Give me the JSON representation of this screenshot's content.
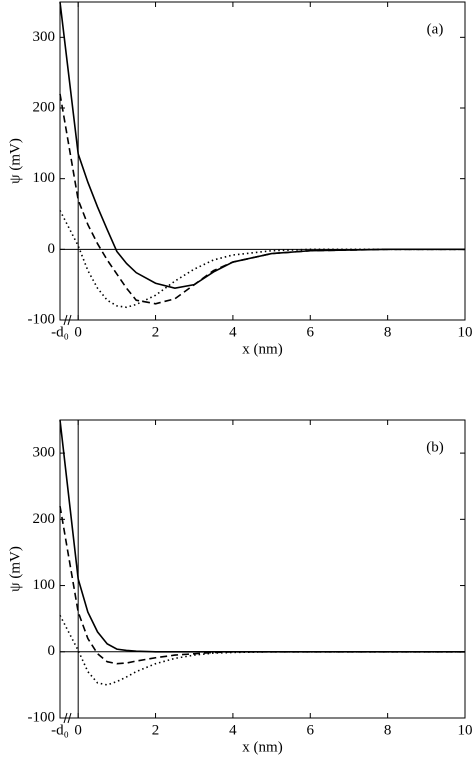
{
  "chart_data": [
    {
      "type": "line",
      "panel_label": "(a)",
      "xlabel": "x (nm)",
      "ylabel": "ψ (mV)",
      "x": [
        -0.47,
        0,
        0.25,
        0.5,
        0.75,
        1,
        1.25,
        1.5,
        2,
        2.5,
        3,
        3.5,
        4,
        5,
        6,
        8,
        10
      ],
      "series": [
        {
          "color": "#000000",
          "dash": "solid",
          "values": [
            350,
            135,
            95,
            60,
            28,
            -3,
            -20,
            -33,
            -48,
            -55,
            -50,
            -32,
            -18,
            -6,
            -2,
            0,
            0
          ]
        },
        {
          "color": "#000000",
          "dash": "dashed",
          "values": [
            220,
            70,
            35,
            8,
            -15,
            -35,
            -55,
            -72,
            -77,
            -70,
            -50,
            -30,
            -18,
            -6,
            -2,
            0,
            0
          ]
        },
        {
          "color": "#000000",
          "dash": "dotted",
          "values": [
            55,
            5,
            -30,
            -55,
            -72,
            -80,
            -82,
            -78,
            -65,
            -45,
            -28,
            -15,
            -8,
            -2,
            0,
            0,
            0
          ]
        }
      ],
      "xlim": [
        -0.47,
        10
      ],
      "xticks": [
        {
          "value": -0.47,
          "label": "-d₀"
        },
        0,
        2,
        4,
        6,
        8,
        10
      ],
      "ylim": [
        -100,
        350
      ],
      "yticks": [
        -100,
        0,
        100,
        200,
        300
      ]
    },
    {
      "type": "line",
      "panel_label": "(b)",
      "xlabel": "x (nm)",
      "ylabel": "ψ (mV)",
      "x": [
        -0.47,
        0,
        0.25,
        0.5,
        0.75,
        1,
        1.25,
        1.5,
        2,
        2.5,
        3,
        3.5,
        4,
        5,
        6,
        8,
        10
      ],
      "series": [
        {
          "color": "#000000",
          "dash": "solid",
          "values": [
            350,
            110,
            60,
            30,
            12,
            4,
            2,
            1,
            0,
            0,
            0,
            0,
            0,
            0,
            0,
            0,
            0
          ]
        },
        {
          "color": "#000000",
          "dash": "dashed",
          "values": [
            220,
            60,
            20,
            -3,
            -15,
            -18,
            -17,
            -14,
            -9,
            -5,
            -3,
            -1,
            0,
            0,
            0,
            0,
            0
          ]
        },
        {
          "color": "#000000",
          "dash": "dotted",
          "values": [
            55,
            2,
            -30,
            -47,
            -50,
            -45,
            -38,
            -30,
            -18,
            -10,
            -5,
            -2,
            -1,
            0,
            0,
            0,
            0
          ]
        }
      ],
      "xlim": [
        -0.47,
        10
      ],
      "xticks": [
        {
          "value": -0.47,
          "label": "-d₀"
        },
        0,
        2,
        4,
        6,
        8,
        10
      ],
      "ylim": [
        -100,
        350
      ],
      "yticks": [
        -100,
        0,
        100,
        200,
        300
      ]
    }
  ]
}
